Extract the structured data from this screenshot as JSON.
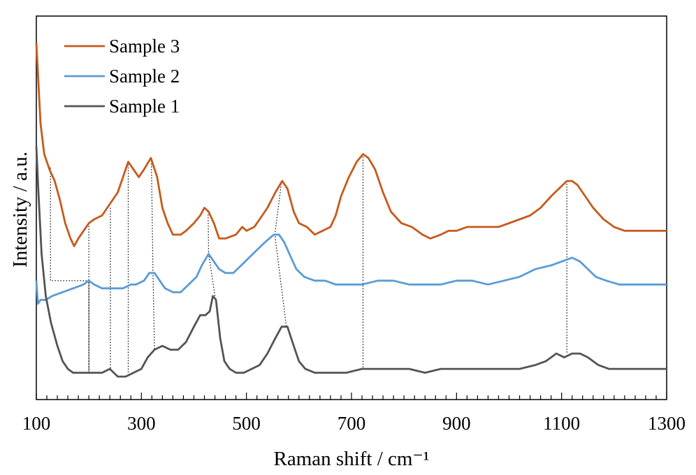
{
  "chart_data": {
    "type": "line",
    "xlabel": "Raman shift / cm⁻¹",
    "ylabel": "Intensity / a.u.",
    "xlim": [
      100,
      1300
    ],
    "x_ticks": [
      100,
      300,
      500,
      700,
      900,
      1100,
      1300
    ],
    "x_tick_labels": [
      "100",
      "300",
      "500",
      "700",
      "900",
      "1100",
      "1300"
    ],
    "x_minor_tick_step": 20,
    "ylim": [
      0,
      10
    ],
    "y_tick_labels": false,
    "grid": false,
    "legend_position": "top-left",
    "series": [
      {
        "name": "Sample 3",
        "color": "#C55A1C",
        "points": [
          [
            100,
            9.3
          ],
          [
            108,
            7.2
          ],
          [
            115,
            6.4
          ],
          [
            125,
            6.0
          ],
          [
            135,
            5.7
          ],
          [
            145,
            5.2
          ],
          [
            155,
            4.6
          ],
          [
            165,
            4.2
          ],
          [
            172,
            4.0
          ],
          [
            180,
            4.2
          ],
          [
            190,
            4.4
          ],
          [
            200,
            4.6
          ],
          [
            210,
            4.7
          ],
          [
            225,
            4.8
          ],
          [
            240,
            5.1
          ],
          [
            255,
            5.4
          ],
          [
            265,
            5.8
          ],
          [
            275,
            6.2
          ],
          [
            285,
            6.0
          ],
          [
            295,
            5.8
          ],
          [
            305,
            6.0
          ],
          [
            318,
            6.3
          ],
          [
            330,
            5.8
          ],
          [
            340,
            5.0
          ],
          [
            350,
            4.6
          ],
          [
            360,
            4.3
          ],
          [
            375,
            4.3
          ],
          [
            385,
            4.4
          ],
          [
            400,
            4.6
          ],
          [
            412,
            4.8
          ],
          [
            420,
            5.0
          ],
          [
            428,
            4.9
          ],
          [
            438,
            4.6
          ],
          [
            448,
            4.2
          ],
          [
            460,
            4.2
          ],
          [
            480,
            4.3
          ],
          [
            492,
            4.5
          ],
          [
            500,
            4.4
          ],
          [
            515,
            4.5
          ],
          [
            525,
            4.7
          ],
          [
            540,
            5.0
          ],
          [
            555,
            5.4
          ],
          [
            568,
            5.7
          ],
          [
            578,
            5.5
          ],
          [
            590,
            4.9
          ],
          [
            600,
            4.6
          ],
          [
            615,
            4.5
          ],
          [
            630,
            4.3
          ],
          [
            645,
            4.4
          ],
          [
            660,
            4.5
          ],
          [
            670,
            4.8
          ],
          [
            680,
            5.3
          ],
          [
            695,
            5.8
          ],
          [
            710,
            6.2
          ],
          [
            722,
            6.4
          ],
          [
            732,
            6.3
          ],
          [
            745,
            6.0
          ],
          [
            760,
            5.4
          ],
          [
            775,
            4.9
          ],
          [
            795,
            4.6
          ],
          [
            815,
            4.5
          ],
          [
            835,
            4.3
          ],
          [
            850,
            4.2
          ],
          [
            870,
            4.3
          ],
          [
            885,
            4.4
          ],
          [
            900,
            4.4
          ],
          [
            920,
            4.5
          ],
          [
            940,
            4.5
          ],
          [
            960,
            4.5
          ],
          [
            980,
            4.5
          ],
          [
            1000,
            4.6
          ],
          [
            1020,
            4.7
          ],
          [
            1040,
            4.8
          ],
          [
            1060,
            5.0
          ],
          [
            1080,
            5.3
          ],
          [
            1095,
            5.5
          ],
          [
            1110,
            5.7
          ],
          [
            1120,
            5.7
          ],
          [
            1130,
            5.6
          ],
          [
            1145,
            5.3
          ],
          [
            1160,
            5.0
          ],
          [
            1180,
            4.7
          ],
          [
            1200,
            4.5
          ],
          [
            1220,
            4.4
          ],
          [
            1250,
            4.4
          ],
          [
            1275,
            4.4
          ],
          [
            1300,
            4.4
          ]
        ]
      },
      {
        "name": "Sample 2",
        "color": "#5B9BD5",
        "points": [
          [
            100,
            3.1
          ],
          [
            103,
            2.5
          ],
          [
            108,
            2.6
          ],
          [
            118,
            2.6
          ],
          [
            130,
            2.7
          ],
          [
            150,
            2.8
          ],
          [
            170,
            2.9
          ],
          [
            190,
            3.0
          ],
          [
            200,
            3.1
          ],
          [
            210,
            3.0
          ],
          [
            225,
            2.9
          ],
          [
            245,
            2.9
          ],
          [
            265,
            2.9
          ],
          [
            280,
            3.0
          ],
          [
            290,
            3.0
          ],
          [
            305,
            3.1
          ],
          [
            315,
            3.3
          ],
          [
            325,
            3.3
          ],
          [
            335,
            3.1
          ],
          [
            345,
            2.9
          ],
          [
            360,
            2.8
          ],
          [
            375,
            2.8
          ],
          [
            390,
            3.0
          ],
          [
            405,
            3.2
          ],
          [
            415,
            3.5
          ],
          [
            428,
            3.8
          ],
          [
            438,
            3.6
          ],
          [
            448,
            3.4
          ],
          [
            460,
            3.3
          ],
          [
            475,
            3.3
          ],
          [
            490,
            3.5
          ],
          [
            505,
            3.7
          ],
          [
            520,
            3.9
          ],
          [
            535,
            4.1
          ],
          [
            552,
            4.3
          ],
          [
            562,
            4.3
          ],
          [
            572,
            4.1
          ],
          [
            585,
            3.7
          ],
          [
            595,
            3.4
          ],
          [
            610,
            3.2
          ],
          [
            630,
            3.1
          ],
          [
            650,
            3.1
          ],
          [
            670,
            3.0
          ],
          [
            700,
            3.0
          ],
          [
            720,
            3.0
          ],
          [
            750,
            3.1
          ],
          [
            780,
            3.1
          ],
          [
            810,
            3.0
          ],
          [
            840,
            3.0
          ],
          [
            870,
            3.0
          ],
          [
            900,
            3.1
          ],
          [
            930,
            3.1
          ],
          [
            960,
            3.0
          ],
          [
            990,
            3.1
          ],
          [
            1020,
            3.2
          ],
          [
            1050,
            3.4
          ],
          [
            1080,
            3.5
          ],
          [
            1100,
            3.6
          ],
          [
            1120,
            3.7
          ],
          [
            1135,
            3.6
          ],
          [
            1150,
            3.4
          ],
          [
            1165,
            3.2
          ],
          [
            1185,
            3.1
          ],
          [
            1210,
            3.0
          ],
          [
            1240,
            3.0
          ],
          [
            1270,
            3.0
          ],
          [
            1300,
            3.0
          ]
        ]
      },
      {
        "name": "Sample 1",
        "color": "#545454",
        "points": [
          [
            100,
            6.6
          ],
          [
            104,
            5.4
          ],
          [
            110,
            3.8
          ],
          [
            118,
            2.7
          ],
          [
            128,
            2.0
          ],
          [
            140,
            1.4
          ],
          [
            150,
            1.0
          ],
          [
            160,
            0.8
          ],
          [
            170,
            0.7
          ],
          [
            180,
            0.7
          ],
          [
            195,
            0.7
          ],
          [
            210,
            0.7
          ],
          [
            225,
            0.7
          ],
          [
            240,
            0.8
          ],
          [
            255,
            0.6
          ],
          [
            270,
            0.6
          ],
          [
            285,
            0.7
          ],
          [
            300,
            0.8
          ],
          [
            312,
            1.1
          ],
          [
            325,
            1.3
          ],
          [
            340,
            1.4
          ],
          [
            355,
            1.3
          ],
          [
            370,
            1.3
          ],
          [
            385,
            1.5
          ],
          [
            400,
            1.9
          ],
          [
            412,
            2.2
          ],
          [
            422,
            2.2
          ],
          [
            430,
            2.3
          ],
          [
            436,
            2.7
          ],
          [
            442,
            2.6
          ],
          [
            450,
            1.6
          ],
          [
            458,
            1.0
          ],
          [
            468,
            0.8
          ],
          [
            480,
            0.7
          ],
          [
            495,
            0.7
          ],
          [
            510,
            0.8
          ],
          [
            525,
            0.9
          ],
          [
            540,
            1.2
          ],
          [
            555,
            1.6
          ],
          [
            567,
            1.9
          ],
          [
            578,
            1.9
          ],
          [
            590,
            1.4
          ],
          [
            600,
            1.0
          ],
          [
            612,
            0.8
          ],
          [
            630,
            0.7
          ],
          [
            660,
            0.7
          ],
          [
            690,
            0.7
          ],
          [
            720,
            0.8
          ],
          [
            750,
            0.8
          ],
          [
            780,
            0.8
          ],
          [
            810,
            0.8
          ],
          [
            840,
            0.7
          ],
          [
            870,
            0.8
          ],
          [
            900,
            0.8
          ],
          [
            930,
            0.8
          ],
          [
            960,
            0.8
          ],
          [
            990,
            0.8
          ],
          [
            1020,
            0.8
          ],
          [
            1050,
            0.9
          ],
          [
            1070,
            1.0
          ],
          [
            1090,
            1.2
          ],
          [
            1105,
            1.1
          ],
          [
            1120,
            1.2
          ],
          [
            1135,
            1.2
          ],
          [
            1150,
            1.1
          ],
          [
            1170,
            0.9
          ],
          [
            1190,
            0.8
          ],
          [
            1220,
            0.8
          ],
          [
            1250,
            0.8
          ],
          [
            1280,
            0.8
          ],
          [
            1300,
            0.8
          ]
        ]
      }
    ],
    "guide_lines": [
      [
        [
          127,
          6.05
        ],
        [
          127,
          3.1
        ],
        [
          200,
          3.1
        ],
        [
          200,
          0.7
        ]
      ],
      [
        [
          200,
          4.6
        ],
        [
          200,
          3.1
        ],
        [
          200,
          0.7
        ]
      ],
      [
        [
          241,
          5.0
        ],
        [
          241,
          0.8
        ]
      ],
      [
        [
          275,
          6.2
        ],
        [
          275,
          0.6
        ]
      ],
      [
        [
          319,
          6.3
        ],
        [
          322,
          3.3
        ],
        [
          325,
          1.3
        ]
      ],
      [
        [
          427,
          4.9
        ],
        [
          428,
          3.8
        ],
        [
          440,
          2.7
        ]
      ],
      [
        [
          567,
          5.7
        ],
        [
          554,
          4.3
        ],
        [
          576,
          1.9
        ]
      ],
      [
        [
          722,
          6.4
        ],
        [
          722,
          0.8
        ]
      ],
      [
        [
          1110,
          5.7
        ],
        [
          1110,
          1.2
        ]
      ]
    ]
  }
}
